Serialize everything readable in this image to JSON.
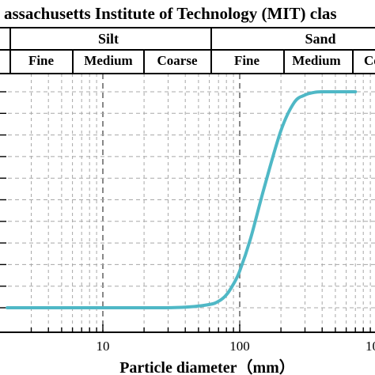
{
  "header": {
    "title": "assachusetts Institute of Technology (MIT) clas",
    "groups": [
      {
        "label": "Silt"
      },
      {
        "label": "Sand"
      }
    ],
    "subgroups": [
      {
        "label": "Fine"
      },
      {
        "label": "Medium"
      },
      {
        "label": "Coarse"
      },
      {
        "label": "Fine"
      },
      {
        "label": "Medium"
      },
      {
        "label": "Co"
      }
    ]
  },
  "chart_data": {
    "type": "line",
    "title": "",
    "xlabel": "Particle diameter（mm）",
    "ylabel": "",
    "x_scale": "log",
    "x_tick_labels": [
      "10",
      "100",
      "10"
    ],
    "grid": true,
    "series": [
      {
        "color": "#4fb8c6",
        "x": [
          2,
          20,
          40,
          60,
          70,
          80,
          90,
          100,
          120,
          150,
          200,
          250,
          300,
          350,
          400,
          500,
          700
        ],
        "y": [
          0.0,
          0.0,
          0.003,
          0.015,
          0.03,
          0.06,
          0.11,
          0.17,
          0.32,
          0.55,
          0.82,
          0.95,
          0.985,
          0.997,
          1.0,
          1.0,
          1.0
        ]
      }
    ]
  }
}
